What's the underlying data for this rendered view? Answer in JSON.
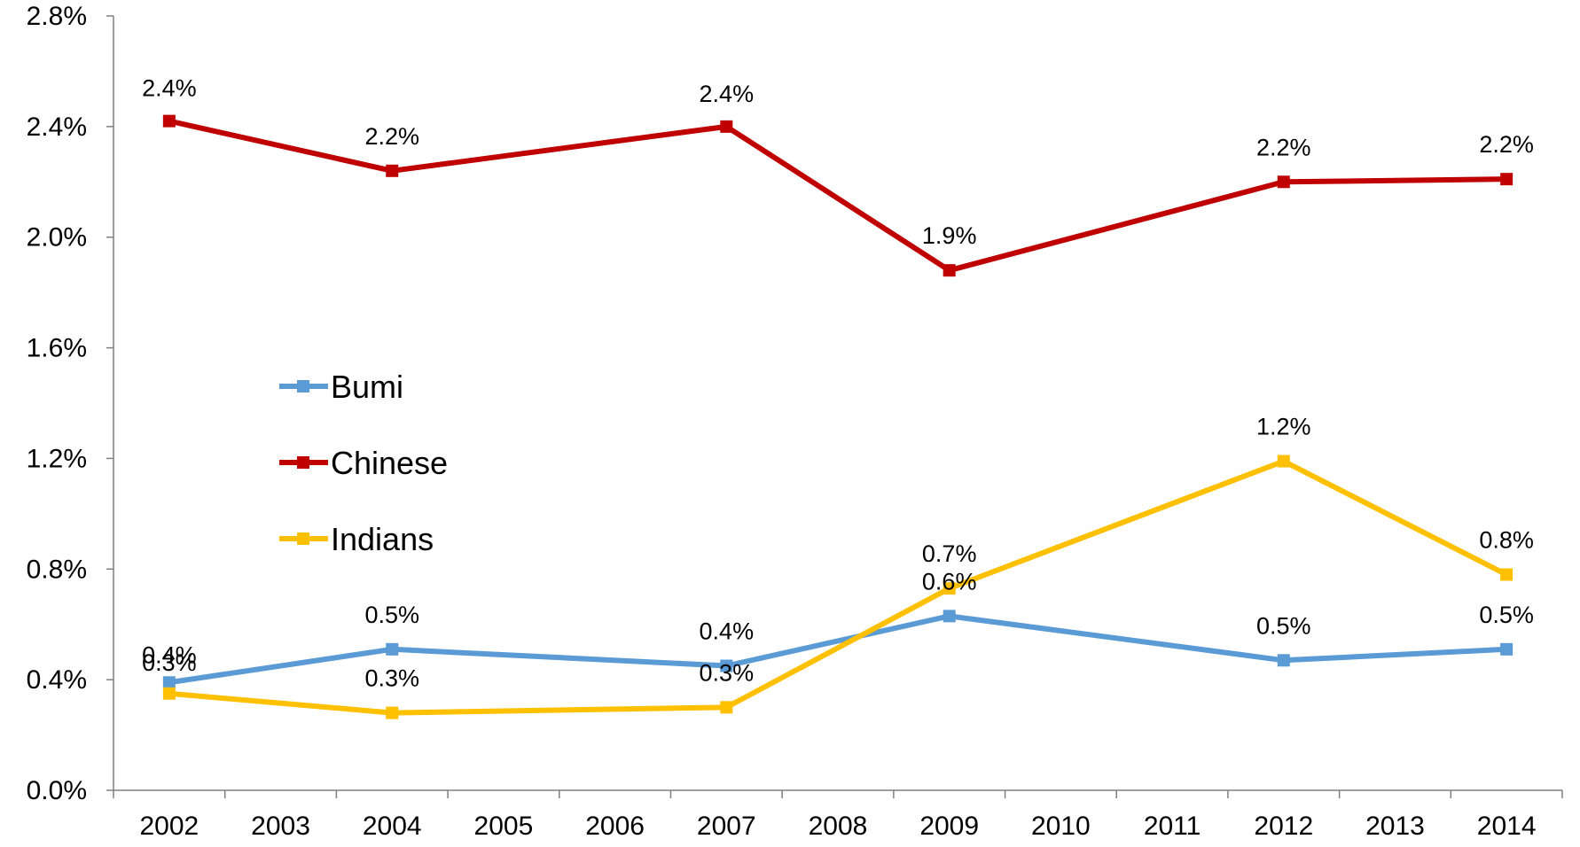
{
  "chart_data": {
    "type": "line",
    "title": "",
    "xlabel": "",
    "ylabel": "",
    "x": [
      "2002",
      "2003",
      "2004",
      "2005",
      "2006",
      "2007",
      "2008",
      "2009",
      "2010",
      "2011",
      "2012",
      "2013",
      "2014"
    ],
    "ylim": [
      0,
      2.8
    ],
    "yticks": [
      "0.0%",
      "0.4%",
      "0.8%",
      "1.2%",
      "1.6%",
      "2.0%",
      "2.4%",
      "2.8%"
    ],
    "grid": false,
    "legend": "center-left",
    "series": [
      {
        "name": "Bumi",
        "color": "#5B9BD5",
        "points": [
          {
            "x": "2002",
            "y": 0.39,
            "label": "0.4%"
          },
          {
            "x": "2004",
            "y": 0.51,
            "label": "0.5%"
          },
          {
            "x": "2007",
            "y": 0.45,
            "label": "0.4%"
          },
          {
            "x": "2009",
            "y": 0.63,
            "label": "0.6%"
          },
          {
            "x": "2012",
            "y": 0.47,
            "label": "0.5%"
          },
          {
            "x": "2014",
            "y": 0.51,
            "label": "0.5%"
          }
        ]
      },
      {
        "name": "Chinese",
        "color": "#C00000",
        "points": [
          {
            "x": "2002",
            "y": 2.42,
            "label": "2.4%"
          },
          {
            "x": "2004",
            "y": 2.24,
            "label": "2.2%"
          },
          {
            "x": "2007",
            "y": 2.4,
            "label": "2.4%"
          },
          {
            "x": "2009",
            "y": 1.88,
            "label": "1.9%"
          },
          {
            "x": "2012",
            "y": 2.2,
            "label": "2.2%"
          },
          {
            "x": "2014",
            "y": 2.21,
            "label": "2.2%"
          }
        ]
      },
      {
        "name": "Indians",
        "color": "#FFC000",
        "points": [
          {
            "x": "2002",
            "y": 0.35,
            "label": "0.3%"
          },
          {
            "x": "2004",
            "y": 0.28,
            "label": "0.3%"
          },
          {
            "x": "2007",
            "y": 0.3,
            "label": "0.3%"
          },
          {
            "x": "2009",
            "y": 0.73,
            "label": "0.7%"
          },
          {
            "x": "2012",
            "y": 1.19,
            "label": "1.2%"
          },
          {
            "x": "2014",
            "y": 0.78,
            "label": "0.8%"
          }
        ]
      }
    ]
  }
}
